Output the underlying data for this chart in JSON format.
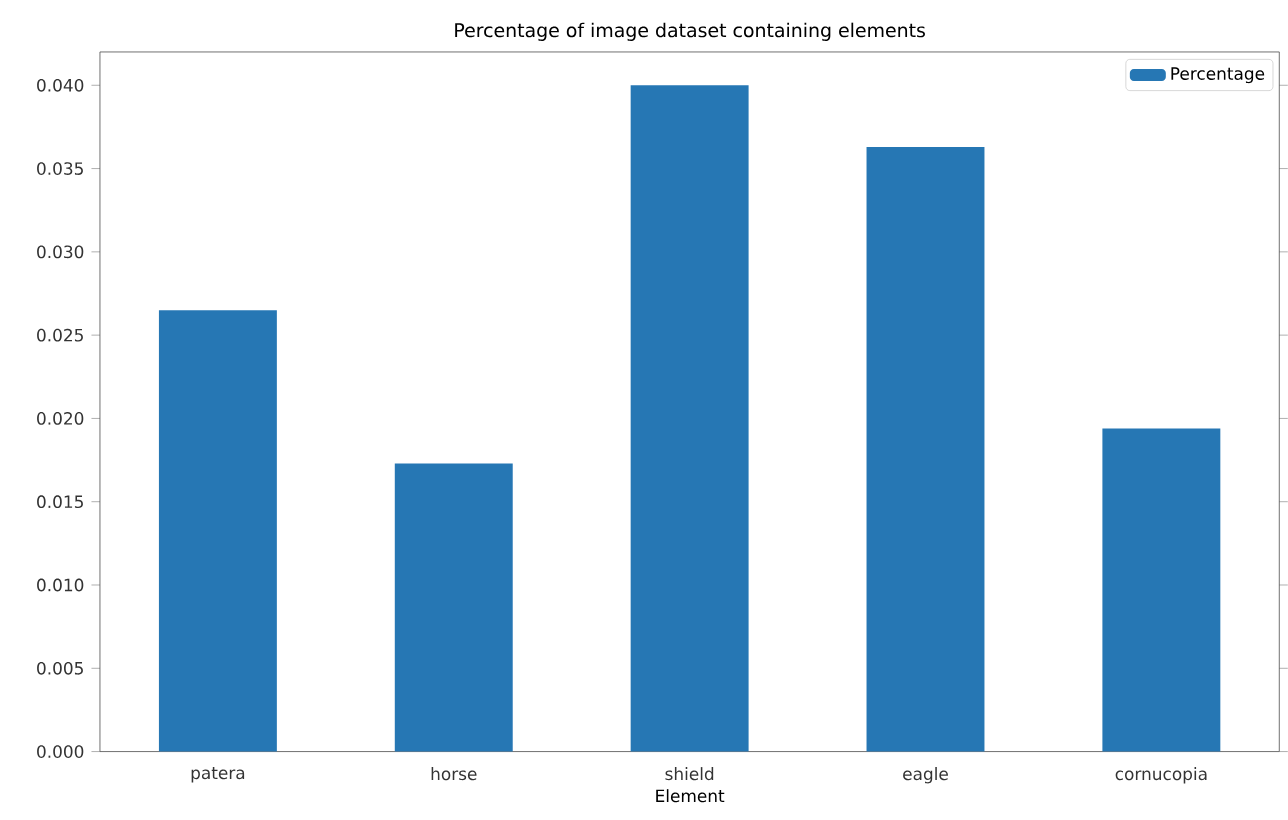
{
  "chart_data": {
    "type": "bar",
    "title": "Percentage of image dataset containing elements",
    "xlabel": "Element",
    "categories": [
      "patera",
      "horse",
      "shield",
      "eagle",
      "cornucopia"
    ],
    "series": [
      {
        "name": "Percentage",
        "color": "#2677b4",
        "values": [
          0.0265,
          0.0173,
          0.04,
          0.0363,
          0.0194
        ]
      }
    ],
    "ylim": [
      0,
      0.042
    ],
    "yticks": [
      {
        "value": 0,
        "label": "0.000"
      },
      {
        "value": 0.005,
        "label": "0.005"
      },
      {
        "value": 0.01,
        "label": "0.010"
      },
      {
        "value": 0.015,
        "label": "0.015"
      },
      {
        "value": 0.02,
        "label": "0.020"
      },
      {
        "value": 0.025,
        "label": "0.025"
      },
      {
        "value": 0.03,
        "label": "0.030"
      },
      {
        "value": 0.035,
        "label": "0.035"
      },
      {
        "value": 0.04,
        "label": "0.040"
      }
    ],
    "legend": "top right"
  }
}
